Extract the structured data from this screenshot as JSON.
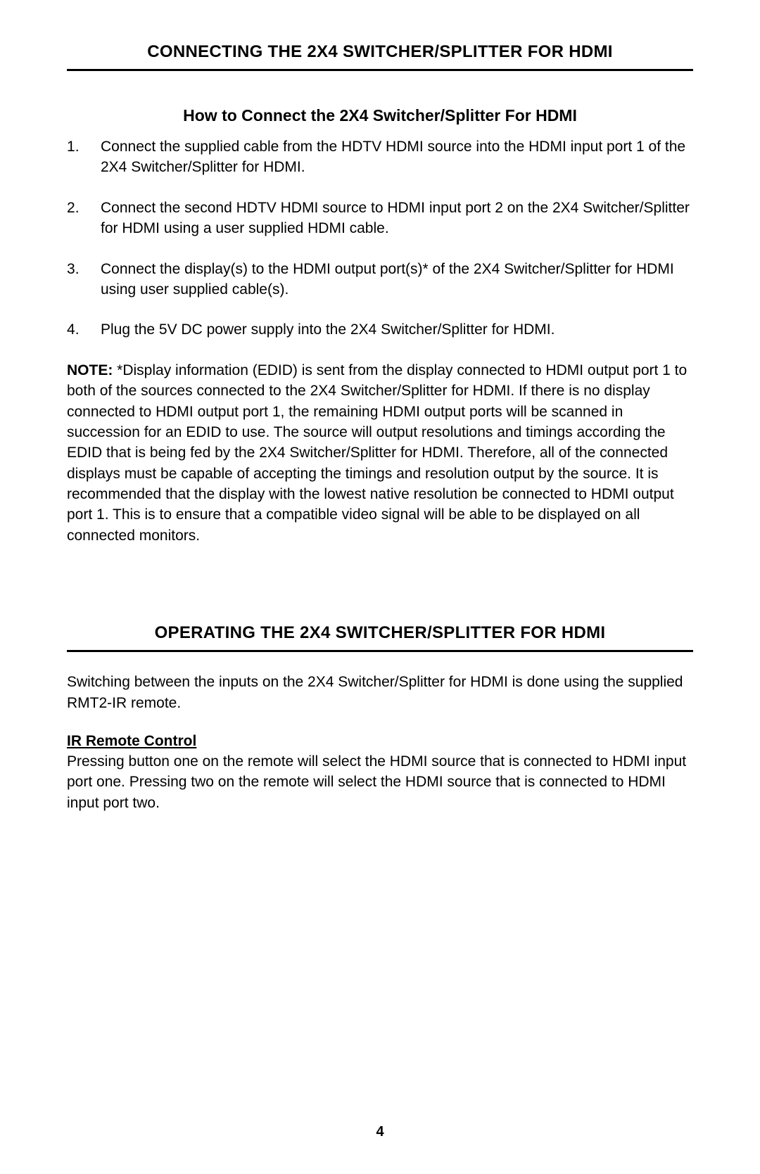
{
  "page": {
    "number": "4",
    "background_color": "#ffffff",
    "text_color": "#000000",
    "rule_color": "#000000",
    "base_fontsize_pt": 16
  },
  "section1": {
    "header": "CONNECTING THE 2X4 SWITCHER/SPLITTER FOR HDMI",
    "sub_heading": "How to Connect the 2X4 Switcher/Splitter For HDMI",
    "steps": [
      "Connect the supplied cable from the HDTV HDMI source into the HDMI input port 1 of the 2X4 Switcher/Splitter for HDMI.",
      "Connect the second HDTV HDMI source to HDMI input port 2 on the 2X4 Switcher/Splitter for HDMI using a user supplied HDMI cable.",
      "Connect the display(s) to the HDMI output port(s)* of the 2X4 Switcher/Splitter for HDMI using user supplied cable(s).",
      "Plug the 5V DC power supply into the 2X4 Switcher/Splitter for HDMI."
    ],
    "note_label": "NOTE: ",
    "note_body": "*Display information (EDID) is sent from the display connected to HDMI output port 1 to both of the sources connected to the 2X4 Switcher/Splitter for HDMI. If there is no display connected to HDMI output port 1, the remaining HDMI output ports will be scanned in succession for an EDID to use. The source will output resolutions and timings according the EDID that is being fed by the 2X4 Switcher/Splitter for HDMI. Therefore, all of the  connected displays must be capable of accepting the timings and resolution output by the source.  It is recommended that the display with the lowest native resolution be connected to HDMI output port 1. This is to ensure that a compatible video signal will be able to be displayed on all connected monitors."
  },
  "section2": {
    "header": "OPERATING THE 2X4 SWITCHER/SPLITTER FOR HDMI",
    "intro": "Switching between the inputs on the 2X4 Switcher/Splitter for HDMI is done using the supplied RMT2-IR remote.",
    "ir_heading": "IR Remote Control",
    "ir_body": "Pressing button one on the remote will select the HDMI source that is connected to HDMI input port one. Pressing two on the remote will select the HDMI source that is connected to HDMI input port two."
  }
}
